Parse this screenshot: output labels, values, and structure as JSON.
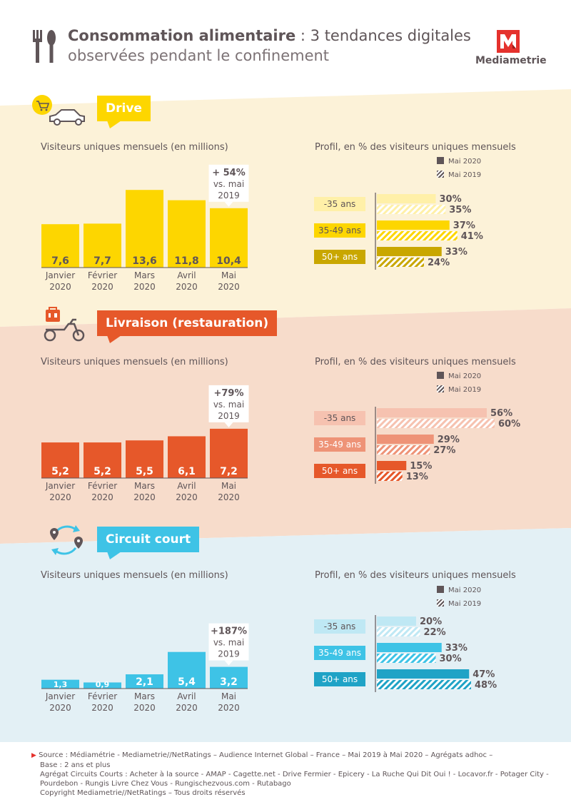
{
  "header": {
    "title_bold": "Consommation alimentaire",
    "title_rest": " : 3 tendances digitales",
    "subtitle": "observées pendant le confinement",
    "logo_text": "Mediametrie"
  },
  "colors": {
    "drive": "#fdd600",
    "drive_dark": "#c9a700",
    "drive_light": "#fff0a8",
    "drive_bg": "#fcf2d8",
    "livraison": "#e6582a",
    "livraison_mid": "#ee9377",
    "livraison_light": "#f6c2b0",
    "livraison_bg": "#f7dccb",
    "circuit": "#3ec3e6",
    "circuit_dark": "#1fa3c6",
    "circuit_light": "#bfe8f4",
    "circuit_bg": "#e3f0f5",
    "legend_dark": "#5f5558"
  },
  "sections": [
    {
      "key": "drive",
      "label": "Drive",
      "bar_title": "Visiteurs uniques mensuels (en millions)",
      "profile_title": "Profil, en % des visiteurs uniques mensuels",
      "legend": [
        "Mai 2020",
        "Mai 2019"
      ],
      "callout": [
        "+ 54%",
        "vs. mai",
        "2019"
      ]
    },
    {
      "key": "livraison",
      "label": "Livraison (restauration)",
      "bar_title": "Visiteurs uniques mensuels (en millions)",
      "profile_title": "Profil, en % des visiteurs uniques mensuels",
      "legend": [
        "Mai 2020",
        "Mai 2019"
      ],
      "callout": [
        "+79%",
        "vs. mai",
        "2019"
      ]
    },
    {
      "key": "circuit",
      "label": "Circuit court",
      "bar_title": "Visiteurs uniques mensuels (en millions)",
      "profile_title": "Profil, en % des visiteurs uniques mensuels",
      "legend": [
        "Mai 2020",
        "Mai 2019"
      ],
      "callout": [
        "+187%",
        "vs. mai",
        "2019"
      ]
    }
  ],
  "chart_data": [
    {
      "type": "bar",
      "section": "Drive",
      "title": "Visiteurs uniques mensuels (en millions)",
      "categories": [
        [
          "Janvier",
          "2020"
        ],
        [
          "Février",
          "2020"
        ],
        [
          "Mars",
          "2020"
        ],
        [
          "Avril",
          "2020"
        ],
        [
          "Mai",
          "2020"
        ]
      ],
      "values": [
        7.6,
        7.7,
        13.6,
        11.8,
        10.4
      ],
      "labels": [
        "7,6",
        "7,7",
        "13,6",
        "11,8",
        "10,4"
      ]
    },
    {
      "type": "bar",
      "orientation": "horizontal",
      "section": "Drive",
      "title": "Profil, en % des visiteurs uniques mensuels",
      "categories": [
        "-35 ans",
        "35-49 ans",
        "50+ ans"
      ],
      "series": [
        {
          "name": "Mai 2020",
          "values": [
            30,
            37,
            33
          ],
          "labels": [
            "30%",
            "37%",
            "33%"
          ]
        },
        {
          "name": "Mai 2019",
          "values": [
            35,
            41,
            24
          ],
          "labels": [
            "35%",
            "41%",
            "24%"
          ]
        }
      ]
    },
    {
      "type": "bar",
      "section": "Livraison (restauration)",
      "title": "Visiteurs uniques mensuels (en millions)",
      "categories": [
        [
          "Janvier",
          "2020"
        ],
        [
          "Février",
          "2020"
        ],
        [
          "Mars",
          "2020"
        ],
        [
          "Avril",
          "2020"
        ],
        [
          "Mai",
          "2020"
        ]
      ],
      "values": [
        5.2,
        5.2,
        5.5,
        6.1,
        7.2
      ],
      "labels": [
        "5,2",
        "5,2",
        "5,5",
        "6,1",
        "7,2"
      ]
    },
    {
      "type": "bar",
      "orientation": "horizontal",
      "section": "Livraison (restauration)",
      "title": "Profil, en % des visiteurs uniques mensuels",
      "categories": [
        "-35 ans",
        "35-49 ans",
        "50+ ans"
      ],
      "series": [
        {
          "name": "Mai 2020",
          "values": [
            56,
            29,
            15
          ],
          "labels": [
            "56%",
            "29%",
            "15%"
          ]
        },
        {
          "name": "Mai 2019",
          "values": [
            60,
            27,
            13
          ],
          "labels": [
            "60%",
            "27%",
            "13%"
          ]
        }
      ]
    },
    {
      "type": "bar",
      "section": "Circuit court",
      "title": "Visiteurs uniques mensuels (en millions)",
      "categories": [
        [
          "Janvier",
          "2020"
        ],
        [
          "Février",
          "2020"
        ],
        [
          "Mars",
          "2020"
        ],
        [
          "Avril",
          "2020"
        ],
        [
          "Mai",
          "2020"
        ]
      ],
      "values": [
        1.3,
        0.9,
        2.1,
        5.4,
        3.2
      ],
      "labels": [
        "1,3",
        "0,9",
        "2,1",
        "5,4",
        "3,2"
      ]
    },
    {
      "type": "bar",
      "orientation": "horizontal",
      "section": "Circuit court",
      "title": "Profil, en % des visiteurs uniques mensuels",
      "categories": [
        "-35 ans",
        "35-49 ans",
        "50+ ans"
      ],
      "series": [
        {
          "name": "Mai 2020",
          "values": [
            20,
            33,
            47
          ],
          "labels": [
            "20%",
            "33%",
            "47%"
          ]
        },
        {
          "name": "Mai 2019",
          "values": [
            22,
            30,
            48
          ],
          "labels": [
            "22%",
            "30%",
            "48%"
          ]
        }
      ]
    }
  ],
  "footer": {
    "line1": "Source : Médiamétrie - Mediametrie//NetRatings – Audience Internet Global – France – Mai 2019 à Mai 2020 – Agrégats adhoc –",
    "line2": "Base : 2 ans et plus",
    "line3": "Agrégat Circuits Courts : Acheter à la source - AMAP - Cagette.net - Drive Fermier - Epicery - La Ruche Qui Dit Oui ! - Locavor.fr - Potager City -",
    "line4": "Pourdebon - Rungis Livre Chez Vous - Rungischezvous.com - Rutabago",
    "line5": "Copyright Mediametrie//NetRatings – Tous droits réservés"
  }
}
